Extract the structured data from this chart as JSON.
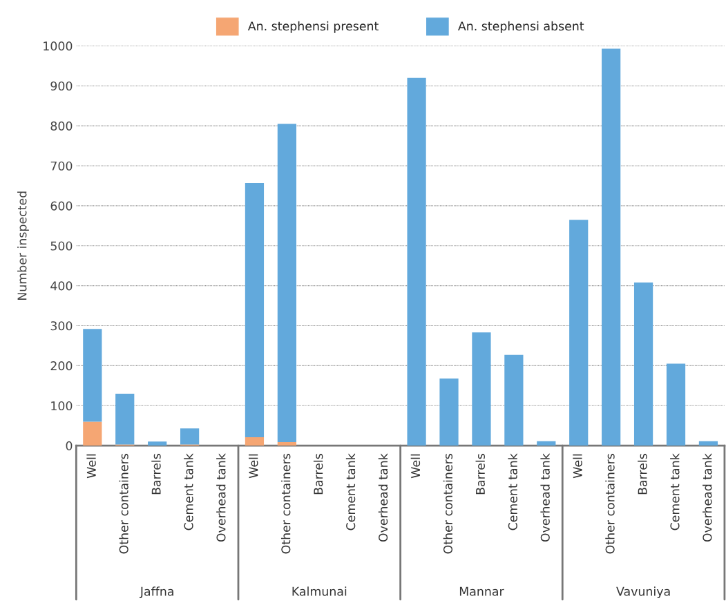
{
  "chart_data": {
    "type": "bar",
    "stacked": true,
    "ylabel": "Number inspected",
    "categories": [
      "Well",
      "Other containers",
      "Barrels",
      "Cement tank",
      "Overhead tank",
      "Well",
      "Other containers",
      "Barrels",
      "Cement tank",
      "Overhead tank",
      "Well",
      "Other containers",
      "Barrels",
      "Cement tank",
      "Overhead tank",
      "Well",
      "Other containers",
      "Barrels",
      "Cement tank",
      "Overhead tank"
    ],
    "series": [
      {
        "name": "An. stephensi present",
        "color": "#f5a673",
        "values": [
          60,
          3,
          0,
          3,
          0,
          21,
          9,
          0,
          0,
          0,
          0,
          0,
          0,
          0,
          0,
          0,
          0,
          0,
          0,
          0
        ]
      },
      {
        "name": "An. stephensi absent",
        "color": "#62a9dc",
        "values": [
          232,
          127,
          10,
          40,
          0,
          636,
          796,
          0,
          0,
          0,
          920,
          168,
          283,
          227,
          11,
          565,
          993,
          408,
          205,
          11
        ]
      }
    ],
    "annotations": [
      "Jaffna",
      "Kalmunai",
      "Mannar",
      "Vavuniya"
    ],
    "ylim": [
      0,
      1000
    ],
    "yticks": [
      0,
      100,
      200,
      300,
      400,
      500,
      600,
      700,
      800,
      900,
      1000
    ],
    "grid": "y",
    "legend": "top"
  }
}
